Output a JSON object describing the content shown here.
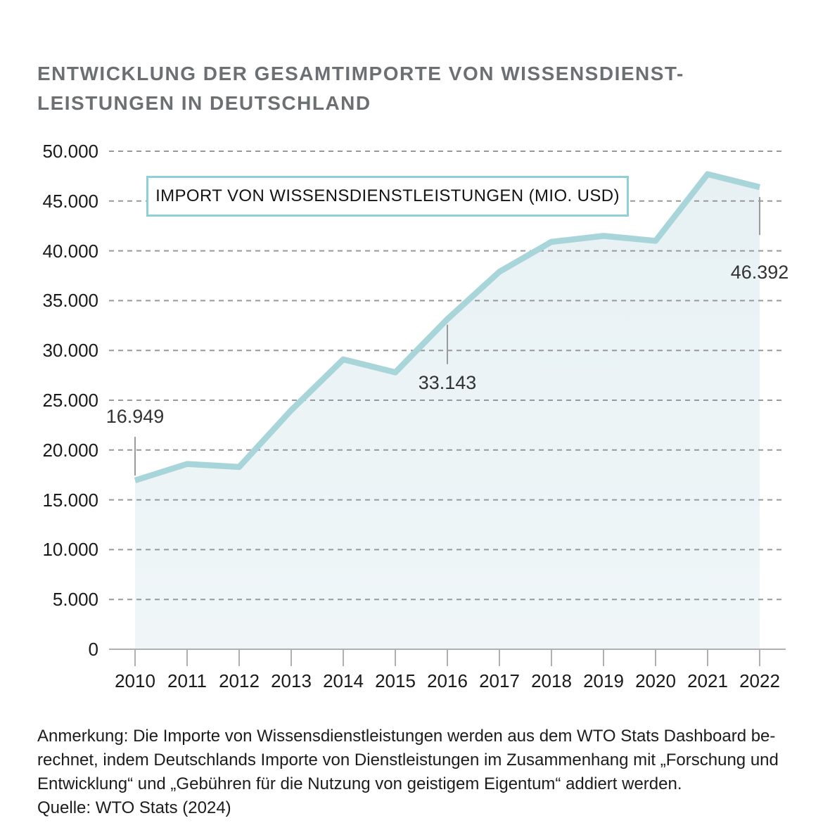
{
  "header": {
    "title_lines": [
      "ENTWICKLUNG DER GESAMTIMPORTE VON WISSENSDIENST-",
      "LEISTUNGEN IN DEUTSCHLAND"
    ]
  },
  "chart_data": {
    "type": "area",
    "legend": "IMPORT VON WISSENSDIENSTLEISTUNGEN (MIO. USD)",
    "legend_position": "top-left-inside",
    "categories": [
      "2010",
      "2011",
      "2012",
      "2013",
      "2014",
      "2015",
      "2016",
      "2017",
      "2018",
      "2019",
      "2020",
      "2021",
      "2022"
    ],
    "values": [
      16949,
      18600,
      18300,
      24000,
      29100,
      27800,
      33143,
      37900,
      40900,
      41500,
      41000,
      47700,
      46392
    ],
    "annotations": [
      {
        "category": "2010",
        "index": 0,
        "label": "16.949",
        "placement": "above"
      },
      {
        "category": "2016",
        "index": 6,
        "label": "33.143",
        "placement": "below"
      },
      {
        "category": "2022",
        "index": 12,
        "label": "46.392",
        "placement": "below-far"
      }
    ],
    "yticks": [
      "0",
      "5.000",
      "10.000",
      "15.000",
      "20.000",
      "25.000",
      "30.000",
      "35.000",
      "40.000",
      "45.000",
      "50.000"
    ],
    "ylim": [
      0,
      50000
    ],
    "grid": "dashed-horizontal",
    "colors": {
      "line": "#a8d5d9",
      "area_top": "#e7f1f4",
      "area_bottom": "#f0f6f8",
      "legend_border": "#8fd0d7",
      "gridline": "#999999",
      "axis": "#b0b0b0",
      "connector": "#9b9b9b",
      "title": "#6d7073",
      "tick_text": "#1a1a1a",
      "data_label": "#333333"
    }
  },
  "footer": {
    "lines": [
      "Anmerkung: Die Importe von Wissensdienstleistungen werden aus dem WTO Stats Dashboard be-",
      "rechnet, indem Deutschlands Importe von Dienstleistungen im Zusammenhang mit „Forschung und",
      "Entwicklung“ und „Gebühren für die Nutzung von geistigem Eigentum“ addiert werden.",
      "Quelle: WTO Stats (2024)"
    ]
  }
}
